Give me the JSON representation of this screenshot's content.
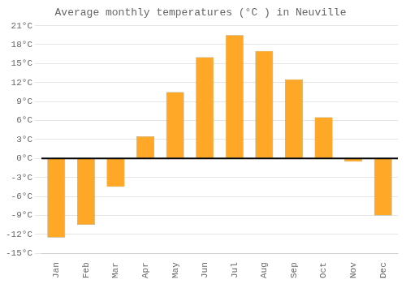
{
  "chart_data": {
    "type": "bar",
    "title": "Average monthly temperatures (°C ) in Neuville",
    "categories": [
      "Jan",
      "Feb",
      "Mar",
      "Apr",
      "May",
      "Jun",
      "Jul",
      "Aug",
      "Sep",
      "Oct",
      "Nov",
      "Dec"
    ],
    "values": [
      -12.5,
      -10.5,
      -4.5,
      3.5,
      10.5,
      16.0,
      19.5,
      17.0,
      12.5,
      6.5,
      -0.5,
      -9.0
    ],
    "color": "#FFA726",
    "ylim": [
      -15,
      21
    ],
    "yticks": [
      {
        "value": -15,
        "label": "-15°C"
      },
      {
        "value": -12,
        "label": "-12°C"
      },
      {
        "value": -9,
        "label": "-9°C"
      },
      {
        "value": -6,
        "label": "-6°C"
      },
      {
        "value": -3,
        "label": "-3°C"
      },
      {
        "value": 0,
        "label": "0°C"
      },
      {
        "value": 3,
        "label": "3°C"
      },
      {
        "value": 6,
        "label": "6°C"
      },
      {
        "value": 9,
        "label": "9°C"
      },
      {
        "value": 12,
        "label": "12°C"
      },
      {
        "value": 15,
        "label": "15°C"
      },
      {
        "value": 18,
        "label": "18°C"
      },
      {
        "value": 21,
        "label": "21°C"
      }
    ],
    "grid": true
  }
}
